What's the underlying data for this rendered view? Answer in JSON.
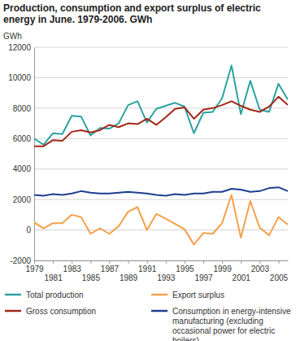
{
  "chart_data": {
    "type": "line",
    "title": "Production, consumption and export surplus of electric energy in June. 1979-2006. GWh",
    "y_label": "GWh",
    "x": [
      1979,
      1980,
      1981,
      1982,
      1983,
      1984,
      1985,
      1986,
      1987,
      1988,
      1989,
      1990,
      1991,
      1992,
      1993,
      1994,
      1995,
      1996,
      1997,
      1998,
      1999,
      2000,
      2001,
      2002,
      2003,
      2004,
      2005,
      2006
    ],
    "xlim": [
      1979,
      2006
    ],
    "xticks": [
      1979,
      1981,
      1983,
      1985,
      1987,
      1989,
      1991,
      1993,
      1995,
      1997,
      1999,
      2001,
      2003,
      2005
    ],
    "ylim": [
      -2000,
      12000
    ],
    "yticks": [
      -2000,
      0,
      2000,
      4000,
      6000,
      8000,
      10000,
      12000
    ],
    "grid": true,
    "legend": "bottom",
    "series": [
      {
        "name": "Total production",
        "color": "#2ba3a0",
        "values": [
          6000,
          5600,
          6350,
          6300,
          7500,
          7450,
          6200,
          6700,
          6650,
          7000,
          8200,
          8450,
          7050,
          7950,
          8150,
          8350,
          8100,
          6350,
          7700,
          7750,
          8650,
          10800,
          7600,
          9800,
          7900,
          7750,
          9600,
          8550
        ]
      },
      {
        "name": "Export surplus",
        "color": "#f5a04a",
        "values": [
          500,
          100,
          450,
          450,
          1000,
          850,
          -250,
          100,
          -250,
          250,
          1200,
          1500,
          0,
          1050,
          750,
          400,
          50,
          -950,
          -200,
          -250,
          450,
          2300,
          -500,
          1900,
          150,
          -350,
          850,
          350
        ]
      },
      {
        "name": "Gross consumption",
        "color": "#a3271a",
        "values": [
          5500,
          5500,
          5900,
          5850,
          6450,
          6550,
          6400,
          6550,
          6900,
          6750,
          7000,
          6950,
          7300,
          6900,
          7400,
          7950,
          8050,
          7300,
          7900,
          8000,
          8200,
          8450,
          8150,
          7900,
          7750,
          8100,
          8750,
          8200
        ]
      },
      {
        "name": "Consumption in energy-intensive manufacturing (excluding occasional power for electric boilers)",
        "color": "#1f3f8f",
        "values": [
          2300,
          2250,
          2350,
          2300,
          2400,
          2550,
          2450,
          2400,
          2400,
          2450,
          2500,
          2450,
          2400,
          2300,
          2250,
          2350,
          2300,
          2400,
          2400,
          2500,
          2500,
          2700,
          2650,
          2500,
          2550,
          2750,
          2800,
          2550
        ]
      }
    ]
  }
}
